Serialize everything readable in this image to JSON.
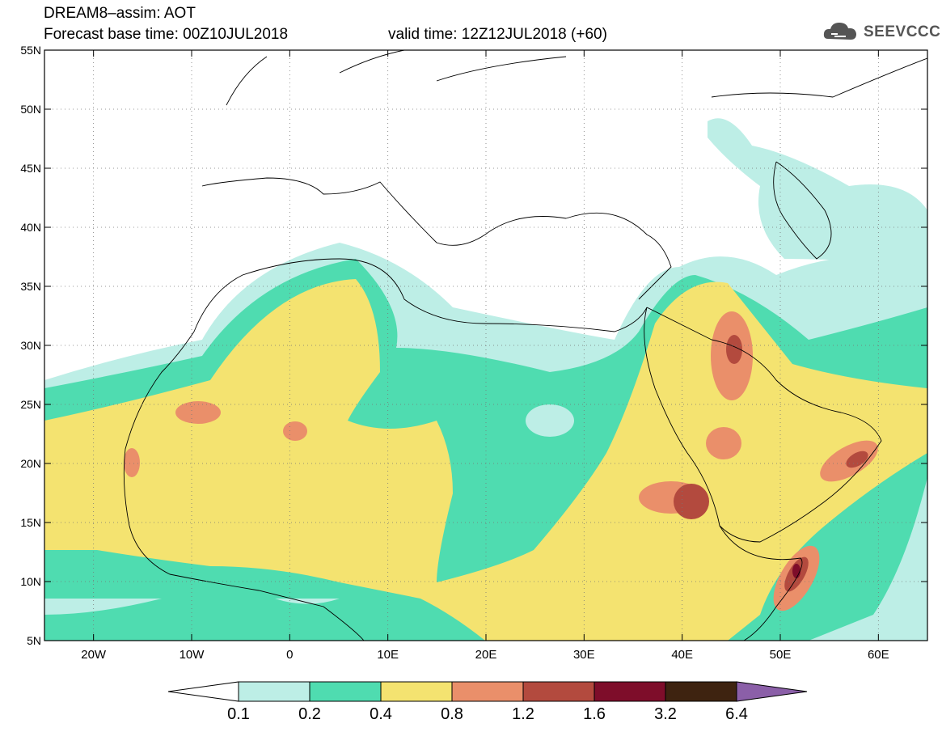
{
  "header": {
    "title": "DREAM8–assim: AOT",
    "base_time": "Forecast base time: 00Z10JUL2018",
    "valid_time": "valid time: 12Z12JUL2018 (+60)"
  },
  "logo": {
    "text": "SEEVCCC",
    "icon": "cloud-icon"
  },
  "map": {
    "lon_ticks": [
      "20W",
      "10W",
      "0",
      "10E",
      "20E",
      "30E",
      "40E",
      "50E",
      "60E"
    ],
    "lon_values": [
      -20,
      -10,
      0,
      10,
      20,
      30,
      40,
      50,
      60
    ],
    "lat_ticks": [
      "55N",
      "50N",
      "45N",
      "40N",
      "35N",
      "30N",
      "25N",
      "20N",
      "15N",
      "10N",
      "5N"
    ],
    "lat_values": [
      55,
      50,
      45,
      40,
      35,
      30,
      25,
      20,
      15,
      10,
      5
    ],
    "lon_range": [
      -25,
      65
    ],
    "lat_range": [
      5,
      55
    ],
    "grid": "dotted"
  },
  "colorbar": {
    "labels": [
      "0.1",
      "0.2",
      "0.4",
      "0.8",
      "1.2",
      "1.6",
      "3.2",
      "6.4"
    ],
    "colors": [
      "#ffffff",
      "#bdeee6",
      "#4fdcb0",
      "#f4e370",
      "#ea8f6a",
      "#b34a3e",
      "#7e0d2a",
      "#3e2310",
      "#8b5fa8"
    ]
  },
  "legend": {
    "colors": {
      "very_low": "#bdeee6",
      "low": "#4fdcb0",
      "moderate": "#f4e370",
      "high": "#ea8f6a",
      "very_high": "#b34a3e",
      "extreme": "#7e0d2a"
    }
  }
}
